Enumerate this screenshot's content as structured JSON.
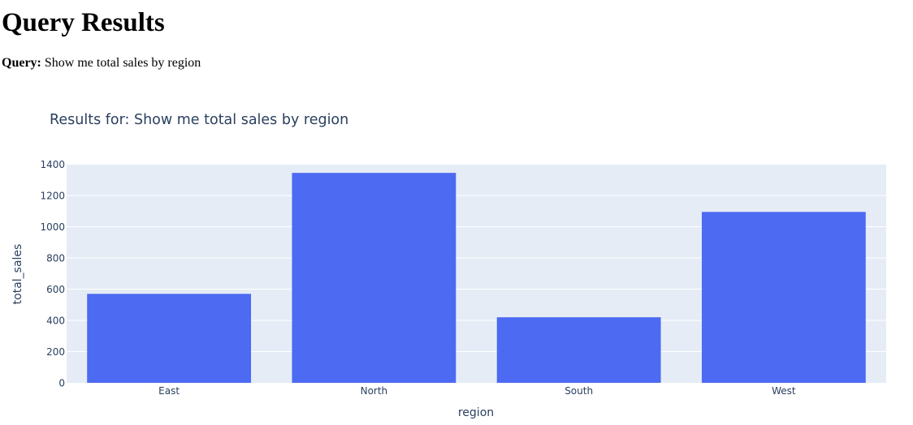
{
  "page": {
    "heading": "Query Results",
    "query_label": "Query:",
    "query_text": "Show me total sales by region"
  },
  "chart_data": {
    "type": "bar",
    "title": "Results for: Show me total sales by region",
    "xlabel": "region",
    "ylabel": "total_sales",
    "categories": [
      "East",
      "North",
      "South",
      "West"
    ],
    "values": [
      570,
      1345,
      420,
      1095
    ],
    "ylim": [
      0,
      1403
    ],
    "yticks": [
      0,
      200,
      400,
      600,
      800,
      1000,
      1200,
      1400
    ],
    "grid": true,
    "colors": {
      "bar": "#4c6af2",
      "plot_bg": "#e5ecf6",
      "grid": "#ffffff",
      "text": "#2a3f5f"
    }
  }
}
